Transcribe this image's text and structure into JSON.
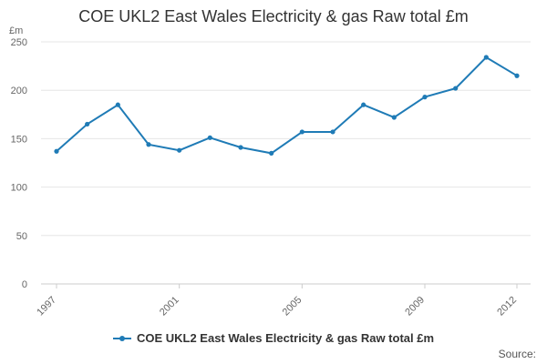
{
  "chart_data": {
    "type": "line",
    "title": "COE UKL2 East Wales Electricity & gas Raw total £m",
    "ylabel": "£m",
    "xlabel": "",
    "ylim": [
      0,
      250
    ],
    "yticks": [
      0,
      50,
      100,
      150,
      200,
      250
    ],
    "xlim": [
      1997,
      2012
    ],
    "xticks": [
      1997,
      2001,
      2005,
      2009,
      2012
    ],
    "grid": true,
    "legend": "bottom",
    "series": [
      {
        "name": "COE UKL2 East Wales Electricity & gas Raw total £m",
        "color": "#1f7bb6",
        "x": [
          1997,
          1998,
          1999,
          2000,
          2001,
          2002,
          2003,
          2004,
          2005,
          2006,
          2007,
          2008,
          2009,
          2010,
          2011,
          2012
        ],
        "values": [
          137,
          165,
          185,
          144,
          138,
          151,
          141,
          135,
          157,
          157,
          185,
          172,
          193,
          202,
          234,
          215
        ]
      }
    ]
  },
  "source_label": "Source:"
}
